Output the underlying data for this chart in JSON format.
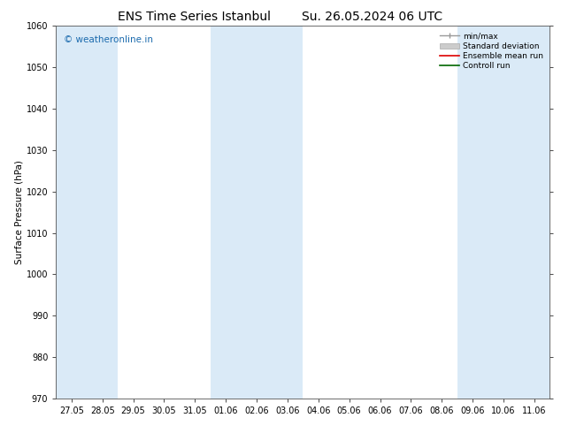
{
  "title1": "ENS Time Series Istanbul",
  "title2": "Su. 26.05.2024 06 UTC",
  "ylabel": "Surface Pressure (hPa)",
  "ylim": [
    970,
    1060
  ],
  "yticks": [
    970,
    980,
    990,
    1000,
    1010,
    1020,
    1030,
    1040,
    1050,
    1060
  ],
  "xtick_labels": [
    "27.05",
    "28.05",
    "29.05",
    "30.05",
    "31.05",
    "01.06",
    "02.06",
    "03.06",
    "04.06",
    "05.06",
    "06.06",
    "07.06",
    "08.06",
    "09.06",
    "10.06",
    "11.06"
  ],
  "shade_color": "#daeaf7",
  "bg_color": "#ffffff",
  "plot_bg": "#ffffff",
  "watermark_text": "© weatheronline.in",
  "watermark_color": "#1a6aad",
  "title_fontsize": 10,
  "axis_fontsize": 7.5,
  "tick_fontsize": 7,
  "watermark_fontsize": 7.5,
  "legend_fontsize": 6.5
}
